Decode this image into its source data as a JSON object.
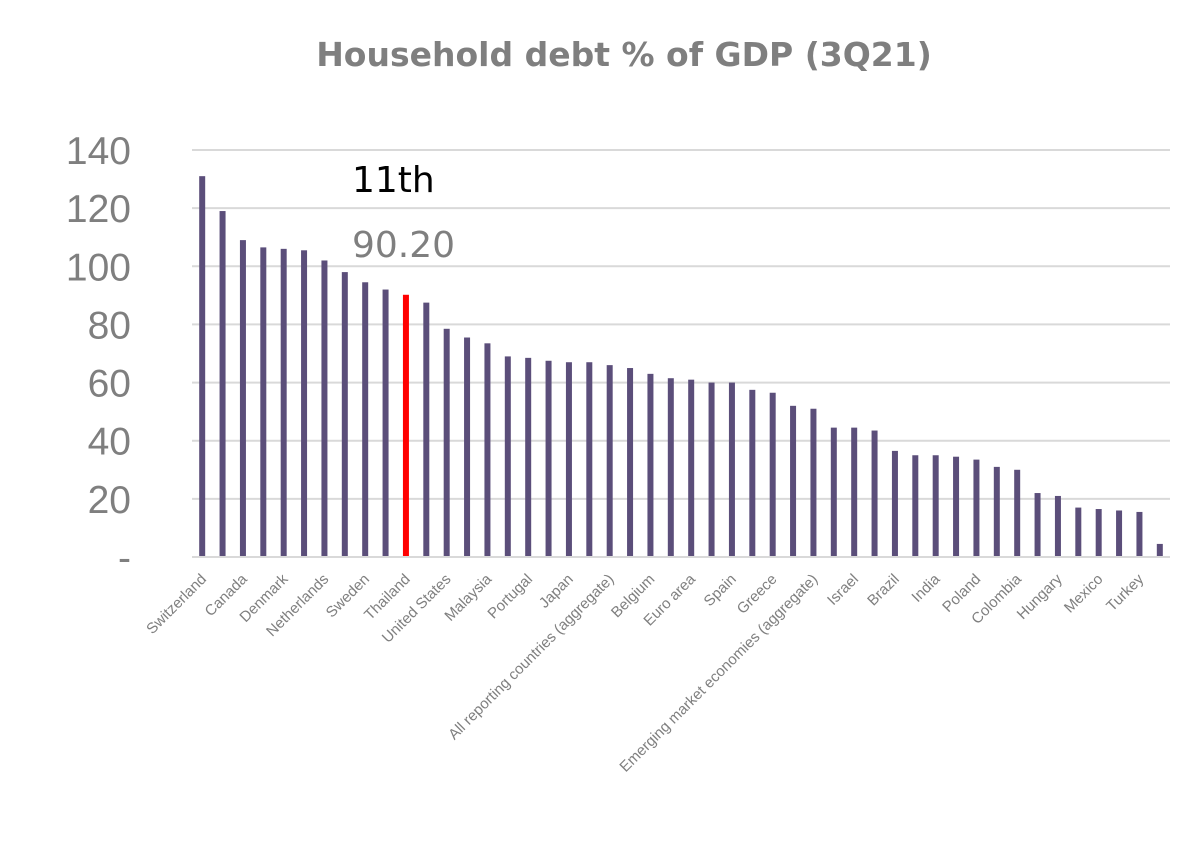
{
  "chart_data": {
    "type": "bar",
    "title": "Household debt % of GDP (3Q21)",
    "xlabel": "",
    "ylabel": "",
    "ylim": [
      0,
      140
    ],
    "yticks": [
      {
        "value": 0,
        "label": "-"
      },
      {
        "value": 20,
        "label": "20"
      },
      {
        "value": 40,
        "label": "40"
      },
      {
        "value": 60,
        "label": "60"
      },
      {
        "value": 80,
        "label": "80"
      },
      {
        "value": 100,
        "label": "100"
      },
      {
        "value": 120,
        "label": "120"
      },
      {
        "value": 140,
        "label": "140"
      }
    ],
    "grid": true,
    "bar_color": "#5b4e7a",
    "highlight_color": "#ff0000",
    "highlight_index": 10,
    "values": [
      131.0,
      119.0,
      109.0,
      106.5,
      106.0,
      105.5,
      102.0,
      98.0,
      94.5,
      92.0,
      90.2,
      87.5,
      78.5,
      75.5,
      73.5,
      69.0,
      68.5,
      67.5,
      67.0,
      67.0,
      66.0,
      65.0,
      63.0,
      61.5,
      61.0,
      60.0,
      60.0,
      57.5,
      56.5,
      52.0,
      51.0,
      44.5,
      44.5,
      43.5,
      36.5,
      35.0,
      35.0,
      34.5,
      33.5,
      31.0,
      30.0,
      22.0,
      21.0,
      17.0,
      16.5,
      16.0,
      15.5,
      4.5
    ],
    "categories": [
      "Switzerland",
      "",
      "Canada",
      "",
      "Denmark",
      "",
      "Netherlands",
      "",
      "Sweden",
      "",
      "Thailand",
      "",
      "United States",
      "",
      "Malaysia",
      "",
      "Portugal",
      "",
      "Japan",
      "",
      "All reporting countries (aggregate)",
      "",
      "Belgium",
      "",
      "Euro area",
      "",
      "Spain",
      "",
      "Greece",
      "",
      "Emerging market economies (aggregate)",
      "",
      "Israel",
      "",
      "Brazil",
      "",
      "India",
      "",
      "Poland",
      "",
      "Colombia",
      "",
      "Hungary",
      "",
      "Mexico",
      "",
      "Turkey",
      ""
    ],
    "annotations": [
      {
        "text": "11th",
        "kind": "rank"
      },
      {
        "text": "90.20",
        "kind": "value"
      }
    ]
  }
}
